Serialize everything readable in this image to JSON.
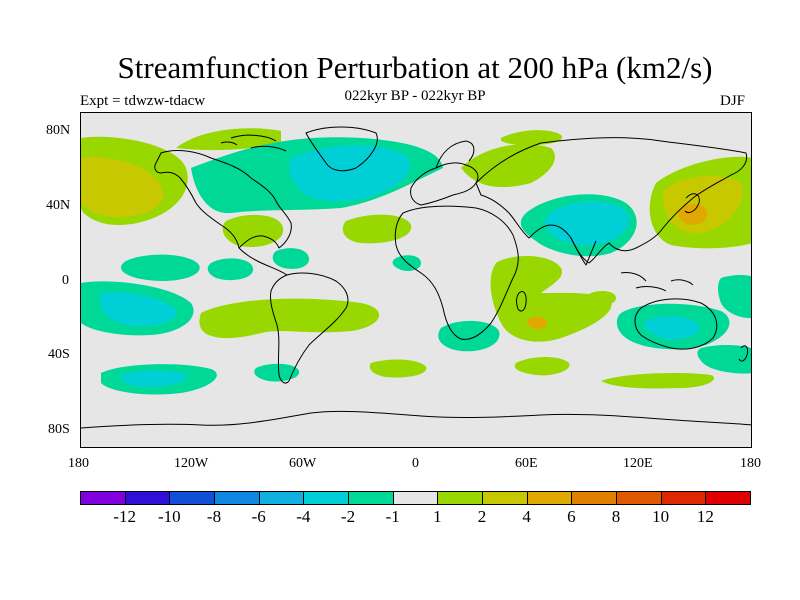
{
  "title": "Streamfunction Perturbation at 200 hPa (km2/s)",
  "subtitle": "022kyr BP - 022kyr BP",
  "experiment": "Expt = tdwzw-tdacw",
  "season": "DJF",
  "map": {
    "projection": "cylindrical equidistant",
    "lon_range": [
      -180,
      180
    ],
    "lat_range": [
      -90,
      90
    ],
    "lat_ticks": [
      "80N",
      "40N",
      "0",
      "40S",
      "80S"
    ],
    "lon_ticks": [
      "180",
      "120W",
      "60W",
      "0",
      "60E",
      "120E",
      "180"
    ],
    "background_color": "#e6e6e6",
    "field_regions": [
      {
        "name": "north-pacific-positive",
        "level": "2 to 4",
        "color": "#c8c800"
      },
      {
        "name": "north-atlantic-negative",
        "level": "-2 to -4",
        "color": "#00cccc"
      },
      {
        "name": "asia-negative",
        "level": "-2 to -4",
        "color": "#00cccc"
      },
      {
        "name": "japan-positive",
        "level": "2 to 4",
        "color": "#c8c800"
      },
      {
        "name": "south-pacific-negative",
        "level": "-2 to -4",
        "color": "#00cccc"
      },
      {
        "name": "south-africa-positive",
        "level": "4 to 6",
        "color": "#e0a000"
      },
      {
        "name": "australia-negative",
        "level": "-2 to -4",
        "color": "#00cccc"
      }
    ]
  },
  "legend": {
    "colors": [
      "#8000e0",
      "#3010d8",
      "#1050d8",
      "#1088e0",
      "#10b0e0",
      "#00cfd6",
      "#00d898",
      "#e6e6e6",
      "#98d800",
      "#c8c800",
      "#e0a800",
      "#e08000",
      "#e05800",
      "#e02800",
      "#e00000"
    ],
    "labels": [
      "-12",
      "-10",
      "-8",
      "-6",
      "-4",
      "-2",
      "-1",
      "1",
      "2",
      "4",
      "6",
      "8",
      "10",
      "12"
    ]
  }
}
